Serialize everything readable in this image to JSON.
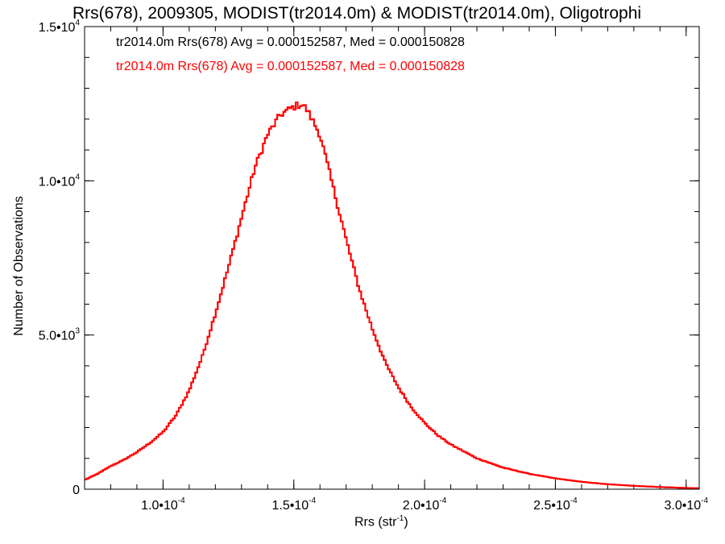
{
  "chart_data": {
    "type": "line",
    "style": "step-histogram",
    "title": "Rrs(678), 2009305, MODIST(tr2014.0m) & MODIST(tr2014.0m), Oligotrophi",
    "annotations": [
      {
        "text": "tr2014.0m Rrs(678) Avg = 0.000152587, Med = 0.000150828",
        "color": "#000000"
      },
      {
        "text": "tr2014.0m Rrs(678) Avg = 0.000152587, Med = 0.000150828",
        "color": "#ff0000"
      }
    ],
    "xlabel_text": "Rrs (str",
    "xlabel_sup": "-1",
    "xlabel_close": ")",
    "ylabel": "Number of Observations",
    "xlim": [
      7e-05,
      0.000305
    ],
    "ylim": [
      0,
      15000
    ],
    "x_ticks": [
      {
        "value": 0.0001,
        "mant": "1.0•10",
        "exp": "-4"
      },
      {
        "value": 0.00015,
        "mant": "1.5•10",
        "exp": "-4"
      },
      {
        "value": 0.0002,
        "mant": "2.0•10",
        "exp": "-4"
      },
      {
        "value": 0.00025,
        "mant": "2.5•10",
        "exp": "-4"
      },
      {
        "value": 0.0003,
        "mant": "3.0•10",
        "exp": "-4"
      }
    ],
    "y_ticks": [
      {
        "value": 0,
        "mant": "0",
        "exp": ""
      },
      {
        "value": 5000,
        "mant": "5.0•10",
        "exp": "3"
      },
      {
        "value": 10000,
        "mant": "1.0•10",
        "exp": "4"
      },
      {
        "value": 15000,
        "mant": "1.5•10",
        "exp": "4"
      }
    ],
    "series": [
      {
        "color": "#ff0000",
        "x": [
          7e-05,
          7.5e-05,
          8e-05,
          8.5e-05,
          9e-05,
          9.5e-05,
          0.0001,
          0.000105,
          0.00011,
          0.000115,
          0.00012,
          0.000125,
          0.00013,
          0.000135,
          0.00014,
          0.000145,
          0.00015,
          0.000153,
          0.000155,
          0.00016,
          0.000165,
          0.00017,
          0.000175,
          0.00018,
          0.000185,
          0.00019,
          0.000195,
          0.0002,
          0.000205,
          0.00021,
          0.00022,
          0.00023,
          0.00024,
          0.00025,
          0.00026,
          0.00027,
          0.00028,
          0.00029,
          0.0003,
          0.000305
        ],
        "values": [
          300,
          500,
          750,
          950,
          1200,
          1500,
          1850,
          2400,
          3200,
          4300,
          5700,
          7200,
          8800,
          10400,
          11500,
          12150,
          12400,
          12500,
          12300,
          11500,
          9800,
          8100,
          6500,
          5200,
          4100,
          3300,
          2650,
          2150,
          1750,
          1450,
          1000,
          700,
          500,
          350,
          240,
          160,
          110,
          70,
          40,
          30
        ]
      },
      {
        "color": "#ff0000",
        "x": [
          7e-05,
          7.5e-05,
          8e-05,
          8.5e-05,
          9e-05,
          9.5e-05,
          0.0001,
          0.000105,
          0.00011,
          0.000115,
          0.00012,
          0.000125,
          0.00013,
          0.000135,
          0.00014,
          0.000145,
          0.00015,
          0.000153,
          0.000155,
          0.00016,
          0.000165,
          0.00017,
          0.000175,
          0.00018,
          0.000185,
          0.00019,
          0.000195,
          0.0002,
          0.000205,
          0.00021,
          0.00022,
          0.00023,
          0.00024,
          0.00025,
          0.00026,
          0.00027,
          0.00028,
          0.00029,
          0.0003,
          0.000305
        ],
        "values": [
          300,
          500,
          750,
          950,
          1200,
          1500,
          1850,
          2400,
          3200,
          4300,
          5700,
          7200,
          8800,
          10400,
          11500,
          12150,
          12400,
          12500,
          12300,
          11500,
          9800,
          8100,
          6500,
          5200,
          4100,
          3300,
          2650,
          2150,
          1750,
          1450,
          1000,
          700,
          500,
          350,
          240,
          160,
          110,
          70,
          40,
          30
        ]
      }
    ],
    "grid": false
  }
}
